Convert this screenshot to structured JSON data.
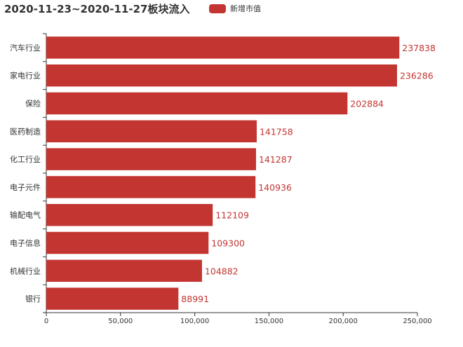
{
  "title": "2020-11-23~2020-11-27板块流入",
  "legend": {
    "label": "新增市值",
    "color": "#c23531"
  },
  "chart_data": {
    "type": "bar",
    "orientation": "horizontal",
    "title": "2020-11-23~2020-11-27板块流入",
    "categories": [
      "汽车行业",
      "家电行业",
      "保险",
      "医药制造",
      "化工行业",
      "电子元件",
      "输配电气",
      "电子信息",
      "机械行业",
      "银行"
    ],
    "series": [
      {
        "name": "新增市值",
        "color": "#c23531",
        "values": [
          237838,
          236286,
          202884,
          141758,
          141287,
          140936,
          112109,
          109300,
          104882,
          88991
        ]
      }
    ],
    "xlim": [
      0,
      250000
    ],
    "xticks": [
      0,
      50000,
      100000,
      150000,
      200000,
      250000
    ],
    "xtick_labels": [
      "0",
      "50,000",
      "100,000",
      "150,000",
      "200,000",
      "250,000"
    ],
    "grid": false,
    "legend_position": "top"
  }
}
